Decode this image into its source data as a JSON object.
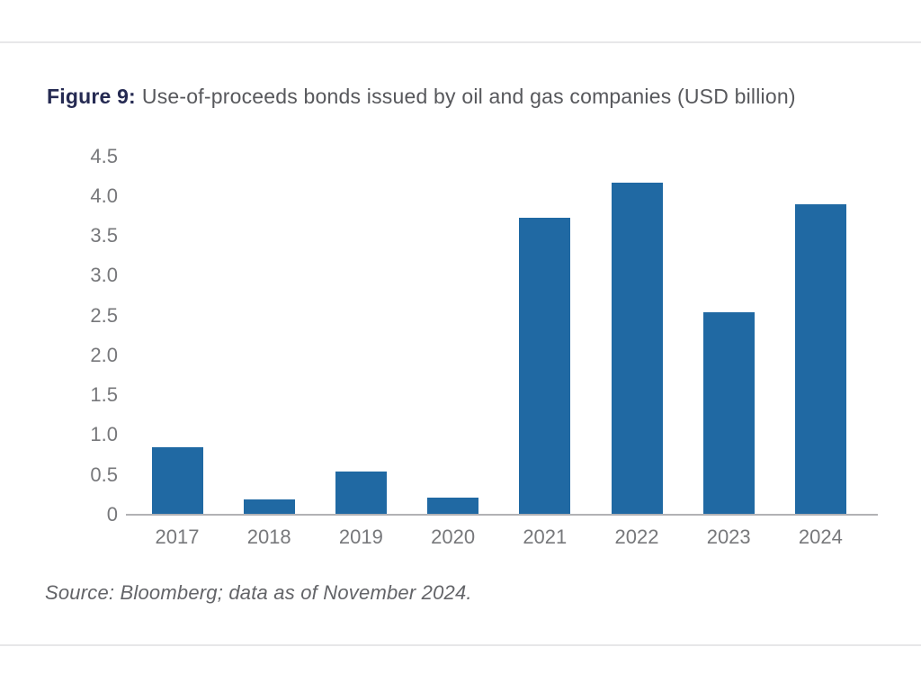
{
  "figure": {
    "label": "Figure 9:",
    "title": "Use-of-proceeds bonds issued by oil and gas companies (USD billion)",
    "source": "Source: Bloomberg; data as of November 2024."
  },
  "colors": {
    "bar": "#2069a3",
    "title_prefix": "#252a52",
    "title_text": "#57585c",
    "axis_labels": "#77787b",
    "axis_line": "#b2b2b5",
    "divider": "#e7e7e9"
  },
  "chart_data": {
    "type": "bar",
    "categories": [
      "2017",
      "2018",
      "2019",
      "2020",
      "2021",
      "2022",
      "2023",
      "2024"
    ],
    "values": [
      0.83,
      0.18,
      0.53,
      0.2,
      3.72,
      4.16,
      2.53,
      3.89
    ],
    "title": "Use-of-proceeds bonds issued by oil and gas companies (USD billion)",
    "xlabel": "",
    "ylabel": "",
    "ylim": [
      0,
      4.5
    ],
    "ytick_labels": [
      "4.5",
      "4.0",
      "3.5",
      "3.0",
      "2.5",
      "2.0",
      "1.5",
      "1.0",
      "0.5",
      "0"
    ],
    "grid": false,
    "legend": false
  }
}
